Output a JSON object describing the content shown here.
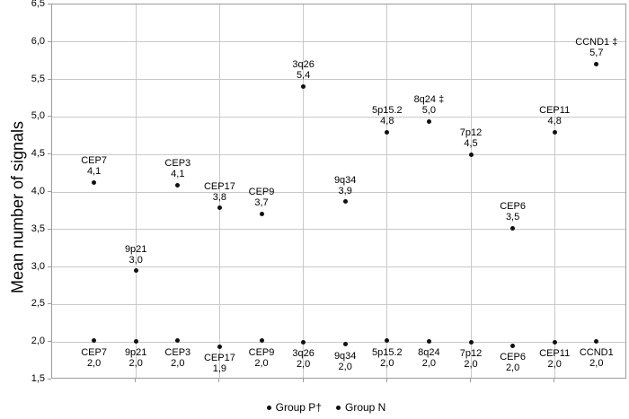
{
  "chart_data": {
    "type": "scatter",
    "title": "",
    "xlabel": "",
    "ylabel": "Mean number of signals",
    "ylim": [
      1.5,
      6.5
    ],
    "ytick_step": 0.5,
    "grid": "horizontal major gridlines every 0.5; vertical gridlines at even category positions; full plot border box",
    "legend_position": "bottom-center",
    "colors": {
      "point": "#111111",
      "gridline": "#c9c9c9",
      "axis": "#9b9b9b",
      "text": "#000000",
      "background": "#ffffff"
    },
    "categories": [
      "CEP7",
      "9p21",
      "CEP3",
      "CEP17",
      "CEP9",
      "3q26",
      "9q34",
      "5p15.2",
      "8q24",
      "7p12",
      "CEP6",
      "CEP11",
      "CCND1"
    ],
    "x_gridline_categories": [
      2,
      4,
      6,
      8,
      10,
      12
    ],
    "yticks": [
      {
        "value": 6.5,
        "label": "6,5"
      },
      {
        "value": 6.0,
        "label": "6,0"
      },
      {
        "value": 5.5,
        "label": "5,5"
      },
      {
        "value": 5.0,
        "label": "5,0"
      },
      {
        "value": 4.5,
        "label": "4,5"
      },
      {
        "value": 4.0,
        "label": "4,0"
      },
      {
        "value": 3.5,
        "label": "3,5"
      },
      {
        "value": 3.0,
        "label": "3,0"
      },
      {
        "value": 2.5,
        "label": "2,5"
      },
      {
        "value": 2.0,
        "label": "2,0"
      },
      {
        "value": 1.5,
        "label": "1,5"
      }
    ],
    "series": [
      {
        "name": "Group P†",
        "label_position": "above",
        "points": [
          {
            "name": "CEP7",
            "value_label": "4,1",
            "y": 4.13
          },
          {
            "name": "9p21",
            "value_label": "3,0",
            "y": 2.95
          },
          {
            "name": "CEP3",
            "value_label": "4,1",
            "y": 4.09
          },
          {
            "name": "CEP17",
            "value_label": "3,8",
            "y": 3.79
          },
          {
            "name": "CEP9",
            "value_label": "3,7",
            "y": 3.71
          },
          {
            "name": "3q26",
            "value_label": "5,4",
            "y": 5.41
          },
          {
            "name": "9q34",
            "value_label": "3,9",
            "y": 3.87
          },
          {
            "name": "5p15.2",
            "value_label": "4,8",
            "y": 4.8
          },
          {
            "name": "8q24 ‡",
            "value_label": "5,0",
            "y": 4.94
          },
          {
            "name": "7p12",
            "value_label": "4,5",
            "y": 4.5
          },
          {
            "name": "CEP6",
            "value_label": "3,5",
            "y": 3.52
          },
          {
            "name": "CEP11",
            "value_label": "4,8",
            "y": 4.8
          },
          {
            "name": "CCND1 ‡",
            "value_label": "5,7",
            "y": 5.71
          }
        ]
      },
      {
        "name": "Group N",
        "label_position": "below",
        "points": [
          {
            "name": "CEP7",
            "value_label": "2,0",
            "y": 2.02
          },
          {
            "name": "9p21",
            "value_label": "2,0",
            "y": 2.01
          },
          {
            "name": "CEP3",
            "value_label": "2,0",
            "y": 2.02
          },
          {
            "name": "CEP17",
            "value_label": "1,9",
            "y": 1.94
          },
          {
            "name": "CEP9",
            "value_label": "2,0",
            "y": 2.02
          },
          {
            "name": "3q26",
            "value_label": "2,0",
            "y": 2.0
          },
          {
            "name": "9q34",
            "value_label": "2,0",
            "y": 1.97
          },
          {
            "name": "5p15.2",
            "value_label": "2,0",
            "y": 2.02
          },
          {
            "name": "8q24",
            "value_label": "2,0",
            "y": 2.01
          },
          {
            "name": "7p12",
            "value_label": "2,0",
            "y": 2.0
          },
          {
            "name": "CEP6",
            "value_label": "2,0",
            "y": 1.95
          },
          {
            "name": "CEP11",
            "value_label": "2,0",
            "y": 2.0
          },
          {
            "name": "CCND1",
            "value_label": "2,0",
            "y": 2.01
          }
        ]
      }
    ]
  }
}
